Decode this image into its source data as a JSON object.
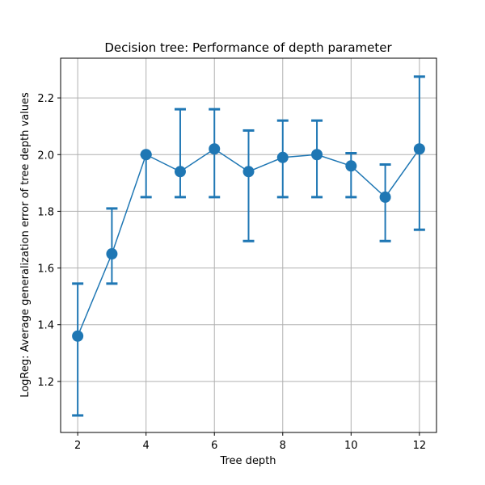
{
  "chart_data": {
    "type": "line",
    "title": "Decision tree: Performance of depth parameter",
    "xlabel": "Tree depth",
    "ylabel": "LogReg: Average generalization error of tree depth values",
    "x_ticks": [
      2,
      4,
      6,
      8,
      10,
      12
    ],
    "y_ticks": [
      1.2,
      1.4,
      1.6,
      1.8,
      2.0,
      2.2
    ],
    "y_tick_labels": [
      "1.2",
      "1.4",
      "1.6",
      "1.8",
      "2.0",
      "2.2"
    ],
    "xlim": [
      1.5,
      12.5
    ],
    "ylim": [
      1.02,
      2.34
    ],
    "grid": true,
    "color": "#1f77b4",
    "series": [
      {
        "x": [
          2,
          3,
          4,
          5,
          6,
          7,
          8,
          9,
          10,
          11,
          12
        ],
        "y": [
          1.36,
          1.65,
          2.0,
          1.94,
          2.02,
          1.94,
          1.99,
          2.0,
          1.96,
          1.85,
          2.02
        ],
        "err_low": [
          1.08,
          1.545,
          1.85,
          1.85,
          1.85,
          1.695,
          1.85,
          1.85,
          1.85,
          1.695,
          1.735
        ],
        "err_high": [
          1.545,
          1.81,
          2.0,
          2.16,
          2.16,
          2.085,
          2.12,
          2.12,
          2.005,
          1.965,
          2.275
        ]
      }
    ]
  }
}
